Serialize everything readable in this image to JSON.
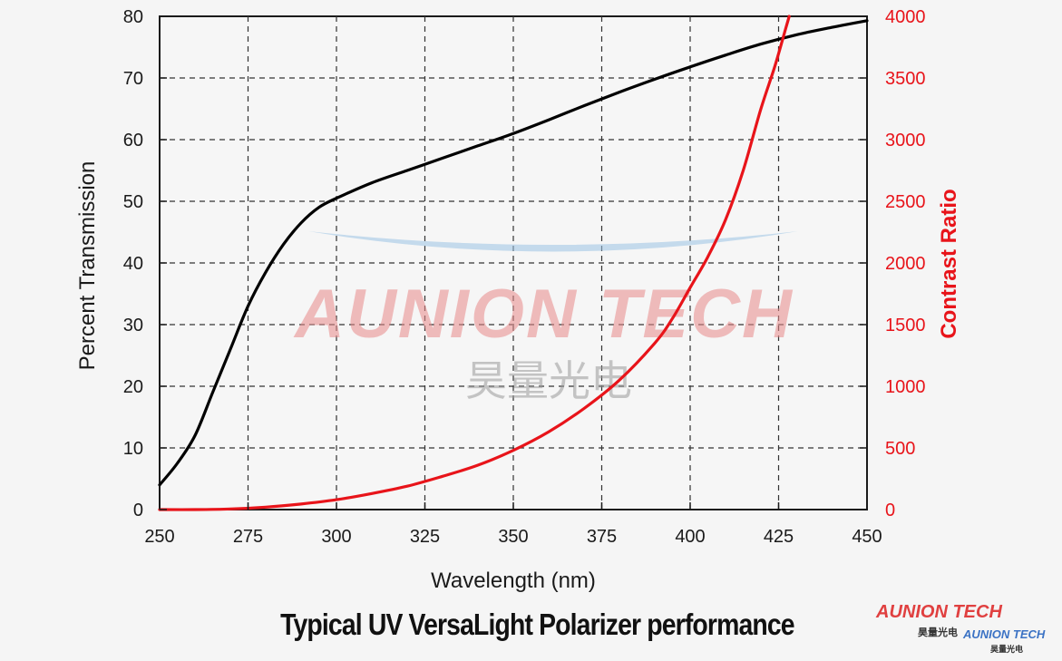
{
  "chart_data": {
    "type": "line",
    "caption": "Typical UV VersaLight Polarizer performance",
    "xlabel": "Wavelength (nm)",
    "ylabel_left": "Percent Transmission",
    "ylabel_right": "Contrast Ratio",
    "xlim": [
      250,
      450
    ],
    "ylim_left": [
      0,
      80
    ],
    "ylim_right": [
      0,
      4000
    ],
    "x_ticks": [
      "250",
      "275",
      "300",
      "325",
      "350",
      "375",
      "400",
      "425",
      "450"
    ],
    "y_left_ticks": [
      "0",
      "10",
      "20",
      "30",
      "40",
      "50",
      "60",
      "70",
      "80"
    ],
    "y_right_ticks": [
      "0",
      "500",
      "1000",
      "1500",
      "2000",
      "2500",
      "3000",
      "3500",
      "4000"
    ],
    "grid": true,
    "series": [
      {
        "axis": "left",
        "color": "#000000",
        "x": [
          250,
          255,
          260,
          265,
          270,
          275,
          280,
          285,
          290,
          295,
          300,
          310,
          320,
          330,
          340,
          350,
          360,
          370,
          380,
          390,
          400,
          410,
          420,
          430,
          440,
          450
        ],
        "y": [
          4,
          7.5,
          12,
          19,
          26,
          33,
          38.5,
          43,
          46.5,
          49,
          50.5,
          53,
          55,
          57,
          59,
          61,
          63.2,
          65.5,
          67.7,
          69.8,
          71.8,
          73.7,
          75.5,
          77,
          78.2,
          79.3
        ]
      },
      {
        "axis": "right",
        "color": "#e8141a",
        "x": [
          250,
          260,
          270,
          280,
          290,
          300,
          310,
          320,
          330,
          340,
          350,
          360,
          370,
          380,
          390,
          395,
          400,
          405,
          410,
          415,
          420,
          424,
          427,
          428
        ],
        "y": [
          0,
          0,
          5,
          20,
          45,
          80,
          130,
          190,
          270,
          360,
          480,
          630,
          820,
          1050,
          1350,
          1550,
          1800,
          2050,
          2350,
          2750,
          3250,
          3600,
          3900,
          4000
        ]
      }
    ]
  },
  "watermark": {
    "brand": "AUNION TECH",
    "chinese": "昊量光电",
    "color_a": "#e88a8a",
    "color_b": "#9cc4e4"
  }
}
